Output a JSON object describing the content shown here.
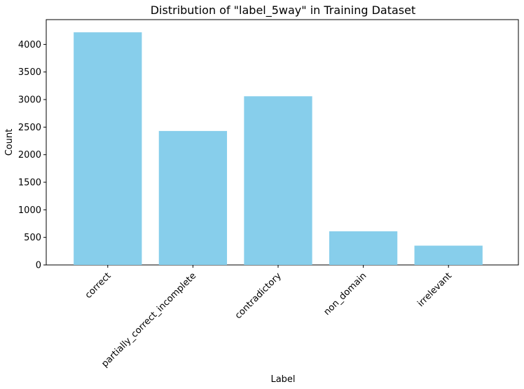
{
  "chart_data": {
    "type": "bar",
    "title": "Distribution of \"label_5way\" in Training Dataset",
    "xlabel": "Label",
    "ylabel": "Count",
    "categories": [
      "correct",
      "partially_correct_incomplete",
      "contradictory",
      "non_domain",
      "irrelevant"
    ],
    "values": [
      4220,
      2430,
      3060,
      610,
      350
    ],
    "ylim": [
      0,
      4450
    ],
    "yticks": [
      0,
      500,
      1000,
      1500,
      2000,
      2500,
      3000,
      3500,
      4000
    ],
    "bar_color": "#87CEEB",
    "xtick_rotation_deg": 45,
    "grid": false,
    "legend": false
  }
}
